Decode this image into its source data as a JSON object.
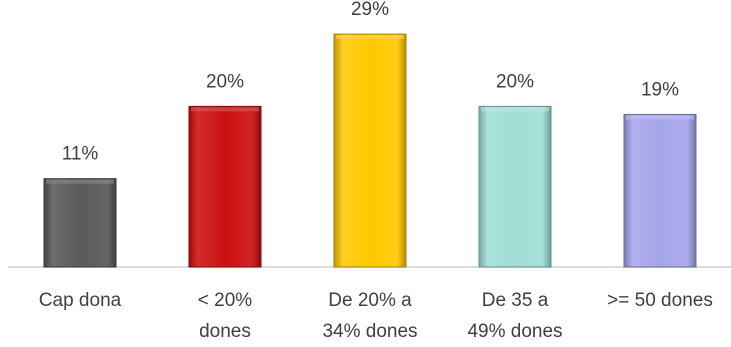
{
  "chart_data": {
    "type": "bar",
    "categories": [
      [
        "Cap dona"
      ],
      [
        "< 20%",
        "dones"
      ],
      [
        "De 20% a",
        "34% dones"
      ],
      [
        "De 35 a",
        "49% dones"
      ],
      [
        ">= 50 dones"
      ]
    ],
    "values": [
      11,
      20,
      29,
      20,
      19
    ],
    "data_labels": [
      "11%",
      "20%",
      "29%",
      "20%",
      "19%"
    ],
    "colors": [
      "#595959",
      "#cc1010",
      "#ffc800",
      "#9fded6",
      "#a5a5ea"
    ],
    "title": "",
    "xlabel": "",
    "ylabel": "",
    "ylim": [
      0,
      32
    ],
    "grid": false,
    "legend": "none"
  }
}
